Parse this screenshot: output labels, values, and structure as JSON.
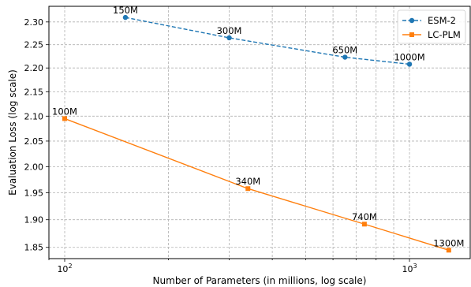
{
  "chart_data": {
    "type": "line",
    "xlabel": "Number of Parameters (in millions, log scale)",
    "ylabel": "Evaluation Loss (log scale)",
    "x_scale": "log",
    "y_scale": "log",
    "xlim": [
      90,
      1500
    ],
    "ylim": [
      1.83,
      2.335
    ],
    "x_ticks": [
      {
        "value": 100,
        "base": "10",
        "exp": "2"
      },
      {
        "value": 1000,
        "base": "10",
        "exp": "3"
      }
    ],
    "y_ticks": [
      1.85,
      1.9,
      1.95,
      2.0,
      2.05,
      2.1,
      2.15,
      2.2,
      2.25,
      2.3
    ],
    "y_tick_labels": [
      "1.85",
      "1.90",
      "1.95",
      "2.00",
      "2.05",
      "2.10",
      "2.15",
      "2.20",
      "2.25",
      "2.30"
    ],
    "grid": true,
    "legend_position": "top-right",
    "series": [
      {
        "name": "ESM-2",
        "color": "#1f77b4",
        "line_style": "dashed",
        "marker": "circle",
        "points": [
          {
            "x": 150,
            "y": 2.31,
            "label": "150M"
          },
          {
            "x": 300,
            "y": 2.265,
            "label": "300M"
          },
          {
            "x": 650,
            "y": 2.223,
            "label": "650M"
          },
          {
            "x": 1000,
            "y": 2.208,
            "label": "1000M"
          }
        ]
      },
      {
        "name": "LC-PLM",
        "color": "#ff7f0e",
        "line_style": "solid",
        "marker": "square",
        "points": [
          {
            "x": 100,
            "y": 2.095,
            "label": "100M"
          },
          {
            "x": 340,
            "y": 1.958,
            "label": "340M"
          },
          {
            "x": 740,
            "y": 1.892,
            "label": "740M"
          },
          {
            "x": 1300,
            "y": 1.845,
            "label": "1300M"
          }
        ]
      }
    ]
  }
}
